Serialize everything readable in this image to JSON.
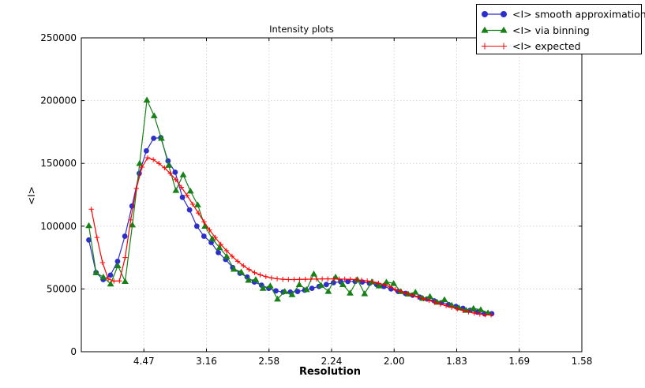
{
  "figure": {
    "title": "Intensity plots",
    "xlabel": "Resolution",
    "ylabel": "<I>",
    "background": "#ffffff"
  },
  "axes": {
    "frame_color": "#000000",
    "grid_color": "#d6d6d6",
    "x_scale_note": "linear in 1/d^2, tick labels show resolution d in Angstrom",
    "x_range": [
      0,
      0.4
    ],
    "y_range": [
      0,
      250000
    ],
    "x_ticks": [
      {
        "pos": 0.05,
        "label": "4.47"
      },
      {
        "pos": 0.1,
        "label": "3.16"
      },
      {
        "pos": 0.15,
        "label": "2.58"
      },
      {
        "pos": 0.2,
        "label": "2.24"
      },
      {
        "pos": 0.25,
        "label": "2.00"
      },
      {
        "pos": 0.3,
        "label": "1.83"
      },
      {
        "pos": 0.35,
        "label": "1.69"
      },
      {
        "pos": 0.4,
        "label": "1.58"
      }
    ],
    "y_ticks": [
      {
        "pos": 0,
        "label": "0"
      },
      {
        "pos": 50000,
        "label": "50000"
      },
      {
        "pos": 100000,
        "label": "100000"
      },
      {
        "pos": 150000,
        "label": "150000"
      },
      {
        "pos": 200000,
        "label": "200000"
      },
      {
        "pos": 250000,
        "label": "250000"
      }
    ]
  },
  "chart_data": {
    "type": "line",
    "title": "Intensity plots",
    "xlabel": "Resolution",
    "ylabel": "<I>",
    "x_tick_labels": [
      "4.47",
      "3.16",
      "2.58",
      "2.24",
      "2.00",
      "1.83",
      "1.69",
      "1.58"
    ],
    "xlim_inv_d_squared": [
      0,
      0.4
    ],
    "ylim": [
      0,
      250000
    ],
    "grid": true,
    "legend_position": "top-right",
    "series": [
      {
        "name": "<I> smooth approximation",
        "color": "#2e2ecb",
        "marker": "circle",
        "points": [
          [
            0.006,
            89000
          ],
          [
            0.0118,
            63000
          ],
          [
            0.0175,
            57500
          ],
          [
            0.0233,
            61000
          ],
          [
            0.029,
            72000
          ],
          [
            0.0348,
            92000
          ],
          [
            0.0405,
            116000
          ],
          [
            0.0463,
            142000
          ],
          [
            0.052,
            160000
          ],
          [
            0.0578,
            170000
          ],
          [
            0.0635,
            170500
          ],
          [
            0.0693,
            152000
          ],
          [
            0.075,
            143000
          ],
          [
            0.0808,
            123000
          ],
          [
            0.0865,
            113000
          ],
          [
            0.0923,
            100000
          ],
          [
            0.098,
            92000
          ],
          [
            0.1038,
            87000
          ],
          [
            0.1095,
            79000
          ],
          [
            0.1153,
            73500
          ],
          [
            0.121,
            67000
          ],
          [
            0.1268,
            62500
          ],
          [
            0.1325,
            59500
          ],
          [
            0.1383,
            55500
          ],
          [
            0.144,
            53000
          ],
          [
            0.1498,
            50500
          ],
          [
            0.1555,
            48500
          ],
          [
            0.1613,
            47500
          ],
          [
            0.167,
            47500
          ],
          [
            0.1728,
            48000
          ],
          [
            0.1785,
            49000
          ],
          [
            0.1843,
            50500
          ],
          [
            0.19,
            52000
          ],
          [
            0.1958,
            53500
          ],
          [
            0.2015,
            55000
          ],
          [
            0.2073,
            55700
          ],
          [
            0.213,
            56000
          ],
          [
            0.2188,
            56000
          ],
          [
            0.2245,
            55500
          ],
          [
            0.2303,
            54500
          ],
          [
            0.236,
            53500
          ],
          [
            0.2418,
            52000
          ],
          [
            0.2475,
            50000
          ],
          [
            0.2533,
            48000
          ],
          [
            0.259,
            46500
          ],
          [
            0.2648,
            45000
          ],
          [
            0.2705,
            43500
          ],
          [
            0.2763,
            42000
          ],
          [
            0.282,
            40500
          ],
          [
            0.2878,
            39000
          ],
          [
            0.2935,
            37500
          ],
          [
            0.2993,
            36000
          ],
          [
            0.305,
            34500
          ],
          [
            0.3108,
            33000
          ],
          [
            0.3165,
            31500
          ],
          [
            0.3223,
            30200
          ],
          [
            0.328,
            30300
          ]
        ]
      },
      {
        "name": "<I> via binning",
        "color": "#178017",
        "marker": "triangle",
        "points": [
          [
            0.006,
            100500
          ],
          [
            0.0118,
            63000
          ],
          [
            0.0176,
            59500
          ],
          [
            0.0234,
            54000
          ],
          [
            0.0292,
            68500
          ],
          [
            0.035,
            56000
          ],
          [
            0.0408,
            101000
          ],
          [
            0.0466,
            150000
          ],
          [
            0.0524,
            200500
          ],
          [
            0.0582,
            188000
          ],
          [
            0.064,
            170000
          ],
          [
            0.0698,
            148500
          ],
          [
            0.0756,
            128500
          ],
          [
            0.0814,
            141000
          ],
          [
            0.0872,
            128000
          ],
          [
            0.093,
            117000
          ],
          [
            0.0988,
            100000
          ],
          [
            0.1046,
            90000
          ],
          [
            0.1104,
            83000
          ],
          [
            0.1162,
            76000
          ],
          [
            0.122,
            65800
          ],
          [
            0.1278,
            63500
          ],
          [
            0.1336,
            57000
          ],
          [
            0.1394,
            57500
          ],
          [
            0.1452,
            50500
          ],
          [
            0.151,
            52500
          ],
          [
            0.1568,
            42000
          ],
          [
            0.1626,
            48000
          ],
          [
            0.1684,
            45500
          ],
          [
            0.1742,
            53500
          ],
          [
            0.18,
            49500
          ],
          [
            0.1858,
            62000
          ],
          [
            0.1916,
            53000
          ],
          [
            0.1974,
            48100
          ],
          [
            0.2032,
            59500
          ],
          [
            0.209,
            53500
          ],
          [
            0.2148,
            46800
          ],
          [
            0.2206,
            57500
          ],
          [
            0.2264,
            46200
          ],
          [
            0.2322,
            55700
          ],
          [
            0.238,
            52500
          ],
          [
            0.2438,
            55500
          ],
          [
            0.2496,
            54400
          ],
          [
            0.2554,
            48000
          ],
          [
            0.2612,
            46000
          ],
          [
            0.267,
            47500
          ],
          [
            0.2728,
            42500
          ],
          [
            0.2786,
            44000
          ],
          [
            0.2844,
            39500
          ],
          [
            0.2902,
            41500
          ],
          [
            0.296,
            37000
          ],
          [
            0.3018,
            35000
          ],
          [
            0.3076,
            33000
          ],
          [
            0.3134,
            34500
          ],
          [
            0.3192,
            33500
          ],
          [
            0.325,
            31000
          ]
        ]
      },
      {
        "name": "<I> expected",
        "color": "#ff0000",
        "marker": "plus",
        "points": [
          [
            0.008,
            113500
          ],
          [
            0.0125,
            91000
          ],
          [
            0.017,
            71000
          ],
          [
            0.0215,
            58000
          ],
          [
            0.026,
            56300
          ],
          [
            0.0305,
            56400
          ],
          [
            0.035,
            75000
          ],
          [
            0.0395,
            105000
          ],
          [
            0.044,
            130000
          ],
          [
            0.0485,
            147000
          ],
          [
            0.053,
            154500
          ],
          [
            0.0575,
            153000
          ],
          [
            0.062,
            150000
          ],
          [
            0.0665,
            146500
          ],
          [
            0.071,
            142000
          ],
          [
            0.0755,
            137000
          ],
          [
            0.08,
            131000
          ],
          [
            0.0845,
            124500
          ],
          [
            0.089,
            117500
          ],
          [
            0.0935,
            110500
          ],
          [
            0.098,
            103500
          ],
          [
            0.1025,
            97000
          ],
          [
            0.107,
            91000
          ],
          [
            0.1115,
            85500
          ],
          [
            0.116,
            80500
          ],
          [
            0.1205,
            76000
          ],
          [
            0.125,
            72000
          ],
          [
            0.1295,
            68500
          ],
          [
            0.134,
            65500
          ],
          [
            0.1385,
            63000
          ],
          [
            0.143,
            61200
          ],
          [
            0.1475,
            59800
          ],
          [
            0.152,
            58800
          ],
          [
            0.1565,
            58100
          ],
          [
            0.161,
            57700
          ],
          [
            0.1655,
            57500
          ],
          [
            0.17,
            57500
          ],
          [
            0.1745,
            57600
          ],
          [
            0.179,
            57700
          ],
          [
            0.1835,
            57800
          ],
          [
            0.188,
            57900
          ],
          [
            0.1925,
            58000
          ],
          [
            0.197,
            58000
          ],
          [
            0.2015,
            58000
          ],
          [
            0.206,
            57900
          ],
          [
            0.2105,
            57800
          ],
          [
            0.215,
            57700
          ],
          [
            0.2195,
            57400
          ],
          [
            0.224,
            57000
          ],
          [
            0.2285,
            56400
          ],
          [
            0.233,
            55600
          ],
          [
            0.2375,
            54600
          ],
          [
            0.242,
            53400
          ],
          [
            0.2465,
            52000
          ],
          [
            0.251,
            49500
          ],
          [
            0.2555,
            48000
          ],
          [
            0.26,
            46500
          ],
          [
            0.2645,
            45000
          ],
          [
            0.269,
            43600
          ],
          [
            0.2735,
            42200
          ],
          [
            0.278,
            40800
          ],
          [
            0.2825,
            39400
          ],
          [
            0.287,
            38000
          ],
          [
            0.2915,
            36700
          ],
          [
            0.296,
            35400
          ],
          [
            0.3005,
            34100
          ],
          [
            0.305,
            32900
          ],
          [
            0.3095,
            31800
          ],
          [
            0.314,
            30800
          ],
          [
            0.3185,
            30000
          ],
          [
            0.323,
            29400
          ],
          [
            0.3275,
            29300
          ]
        ]
      }
    ]
  }
}
